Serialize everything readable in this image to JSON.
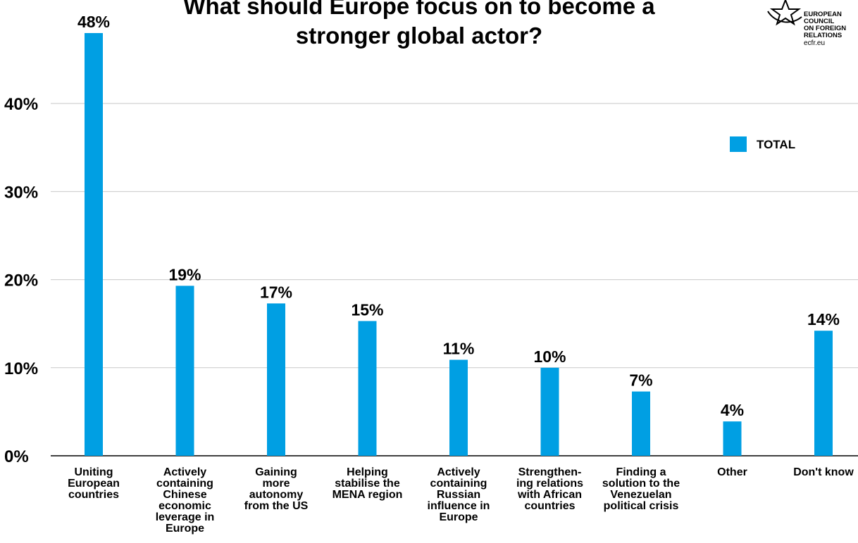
{
  "chart_data": {
    "type": "bar",
    "title_lines": [
      "What should Europe focus on to become a",
      "stronger global actor?"
    ],
    "categories": [
      [
        "Uniting",
        "European",
        "countries"
      ],
      [
        "Actively",
        "containing",
        "Chinese",
        "economic",
        "leverage in",
        "Europe"
      ],
      [
        "Gaining",
        "more",
        "autonomy",
        "from the US"
      ],
      [
        "Helping",
        "stabilise the",
        "MENA region"
      ],
      [
        "Actively",
        "containing",
        "Russian",
        "influence in",
        "Europe"
      ],
      [
        "Strengthen-",
        "ing relations",
        "with African",
        "countries"
      ],
      [
        "Finding a",
        "solution to the",
        "Venezuelan",
        "political crisis"
      ],
      [
        "Other"
      ],
      [
        "Don't know"
      ]
    ],
    "series": [
      {
        "name": "TOTAL",
        "color": "#009fe3",
        "values": [
          48,
          19.3,
          17.3,
          15.3,
          10.9,
          10,
          7.3,
          3.9,
          14.2
        ],
        "data_labels": [
          "48%",
          "19%",
          "17%",
          "15%",
          "11%",
          "10%",
          "7%",
          "4%",
          "14%"
        ]
      }
    ],
    "ylim": [
      0,
      48
    ],
    "yticks": [
      0,
      10,
      20,
      30,
      40
    ],
    "ytick_labels": [
      "0%",
      "10%",
      "20%",
      "30%",
      "40%"
    ],
    "grid": true,
    "legend_position": "top-right"
  },
  "logo": {
    "lines": [
      "EUROPEAN",
      "COUNCIL",
      "ON FOREIGN",
      "RELATIONS"
    ],
    "url": "ecfr.eu",
    "icon": "star-circle-icon"
  }
}
